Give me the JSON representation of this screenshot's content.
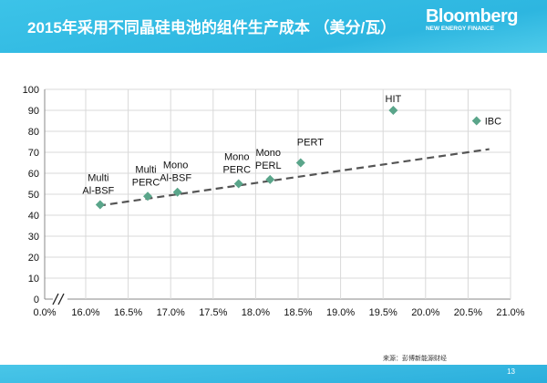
{
  "header": {
    "title": "2015年采用不同晶硅电池的组件生产成本 （美分/瓦）",
    "logo_main": "Bloomberg",
    "logo_sub": "NEW ENERGY FINANCE"
  },
  "footer": {
    "source": "来源：彭博新能源财经",
    "page_number": "13"
  },
  "colors": {
    "header": "#2db6e0",
    "marker": "#5aa58a",
    "trend": "#555555"
  },
  "chart_data": {
    "type": "scatter",
    "title": "2015年采用不同晶硅电池的组件生产成本 （美分/瓦）",
    "xlabel": "",
    "ylabel": "",
    "x_ticks": [
      "0.0%",
      "16.0%",
      "16.5%",
      "17.0%",
      "17.5%",
      "18.0%",
      "18.5%",
      "19.0%",
      "19.5%",
      "20.0%",
      "20.5%",
      "21.0%"
    ],
    "x_tick_values": [
      0,
      16,
      16.5,
      17,
      17.5,
      18,
      18.5,
      19,
      19.5,
      20,
      20.5,
      21
    ],
    "xlim": [
      16,
      21
    ],
    "x_axis_break": true,
    "y_ticks": [
      "0",
      "10",
      "20",
      "30",
      "40",
      "50",
      "60",
      "70",
      "80",
      "90",
      "100"
    ],
    "ylim": [
      0,
      100
    ],
    "grid": true,
    "points": [
      {
        "label": "Multi\nAl-BSF",
        "x": 16.17,
        "y": 45
      },
      {
        "label": "Multi\nPERC",
        "x": 16.73,
        "y": 49
      },
      {
        "label": "Mono\nAl-BSF",
        "x": 17.08,
        "y": 51
      },
      {
        "label": "Mono\nPERC",
        "x": 17.8,
        "y": 55
      },
      {
        "label": "Mono\nPERL",
        "x": 18.17,
        "y": 57
      },
      {
        "label": "PERT",
        "x": 18.53,
        "y": 65
      },
      {
        "label": "HIT",
        "x": 19.62,
        "y": 90
      },
      {
        "label": "IBC",
        "x": 20.6,
        "y": 85
      }
    ],
    "trendline": {
      "type": "linear",
      "x": [
        16.15,
        20.75
      ],
      "y": [
        44.5,
        71.5
      ]
    }
  }
}
